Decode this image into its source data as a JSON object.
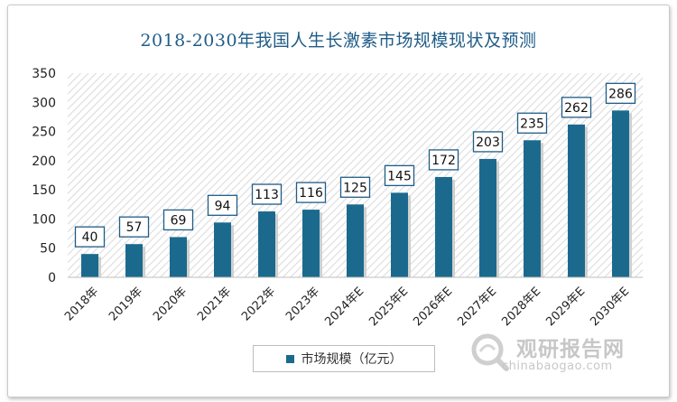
{
  "chart_data": {
    "type": "bar",
    "title": "2018-2030年我国人生长激素市场规模现状及预测",
    "categories": [
      "2018年",
      "2019年",
      "2020年",
      "2021年",
      "2022年",
      "2023年",
      "2024年E",
      "2025年E",
      "2026年E",
      "2027年E",
      "2028年E",
      "2029年E",
      "2030年E"
    ],
    "series": [
      {
        "name": "市场规模（亿元）",
        "values": [
          40,
          57,
          69,
          94,
          113,
          116,
          125,
          145,
          172,
          203,
          235,
          262,
          286
        ]
      }
    ],
    "ylim": [
      0,
      350
    ],
    "yticks": [
      0,
      50,
      100,
      150,
      200,
      250,
      300,
      350
    ],
    "grid": false,
    "data_labels": true,
    "legend_position": "bottom"
  },
  "colors": {
    "bar": "#1b6a8e",
    "bar_shadow": "#d0d0d0",
    "label_border": "#1f5c88",
    "title": "#1f5c88",
    "hatch": "#d9d9d9"
  },
  "watermark": {
    "name": "观研报告网",
    "url": "chinabaogao.com",
    "logo_icon": "magnifier-swirl-icon"
  }
}
